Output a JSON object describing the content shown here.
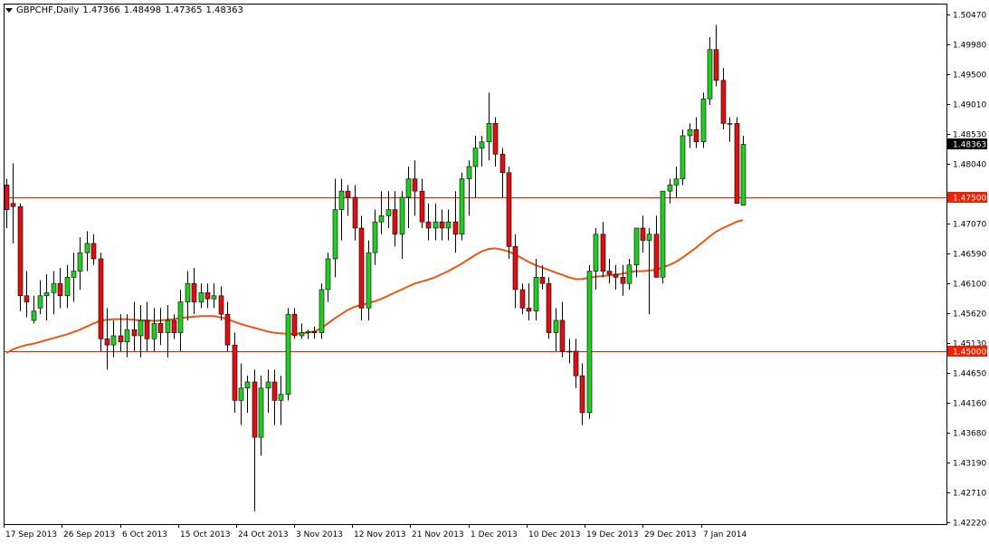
{
  "header": {
    "symbol": "GBPCHF,Daily",
    "open": "1.47366",
    "high": "1.48498",
    "low": "1.47365",
    "close": "1.48363"
  },
  "colors": {
    "bull": "#22cc22",
    "bear": "#dd1111",
    "wick": "#000000",
    "ma": "#ee5511",
    "hline": "#ee2200",
    "label_bg": "#ee2200",
    "current_bg": "#000000",
    "grid_frame": "#000000"
  },
  "chart_data": {
    "type": "candlestick",
    "symbol": "GBPCHF",
    "timeframe": "Daily",
    "ylim": [
      1.4222,
      1.5047
    ],
    "y_ticks": [
      "1.50470",
      "1.49980",
      "1.49500",
      "1.49010",
      "1.48530",
      "1.48040",
      "1.47070",
      "1.46590",
      "1.46100",
      "1.45620",
      "1.45130",
      "1.44650",
      "1.44160",
      "1.43680",
      "1.43190",
      "1.42710",
      "1.42220"
    ],
    "x_labels": [
      "17 Sep 2013",
      "26 Sep 2013",
      "6 Oct 2013",
      "15 Oct 2013",
      "24 Oct 2013",
      "3 Nov 2013",
      "12 Nov 2013",
      "21 Nov 2013",
      "1 Dec 2013",
      "10 Dec 2013",
      "19 Dec 2013",
      "29 Dec 2013",
      "7 Jan 2014"
    ],
    "horizontal_lines": [
      {
        "label": "1.47500",
        "value": 1.475
      },
      {
        "label": "1.45000",
        "value": 1.45
      }
    ],
    "current_price_label": "1.48363",
    "candles": [
      [
        1.477,
        1.478,
        1.47,
        1.473
      ],
      [
        1.474,
        1.4805,
        1.4675,
        1.4735
      ],
      [
        1.4735,
        1.474,
        1.4565,
        1.459
      ],
      [
        1.459,
        1.463,
        1.4555,
        1.458
      ],
      [
        1.455,
        1.459,
        1.4545,
        1.4565
      ],
      [
        1.457,
        1.4615,
        1.456,
        1.459
      ],
      [
        1.459,
        1.4625,
        1.455,
        1.4595
      ],
      [
        1.4595,
        1.463,
        1.456,
        1.461
      ],
      [
        1.461,
        1.4635,
        1.457,
        1.459
      ],
      [
        1.459,
        1.464,
        1.457,
        1.462
      ],
      [
        1.462,
        1.466,
        1.458,
        1.463
      ],
      [
        1.463,
        1.4685,
        1.46,
        1.466
      ],
      [
        1.466,
        1.4695,
        1.463,
        1.4675
      ],
      [
        1.4675,
        1.469,
        1.464,
        1.465
      ],
      [
        1.465,
        1.466,
        1.45,
        1.452
      ],
      [
        1.452,
        1.457,
        1.447,
        1.451
      ],
      [
        1.451,
        1.455,
        1.449,
        1.4525
      ],
      [
        1.4525,
        1.456,
        1.45,
        1.4515
      ],
      [
        1.4515,
        1.456,
        1.449,
        1.4535
      ],
      [
        1.4535,
        1.458,
        1.45,
        1.4525
      ],
      [
        1.4525,
        1.4575,
        1.449,
        1.455
      ],
      [
        1.455,
        1.458,
        1.45,
        1.452
      ],
      [
        1.452,
        1.457,
        1.45,
        1.4545
      ],
      [
        1.4545,
        1.457,
        1.451,
        1.453
      ],
      [
        1.453,
        1.4575,
        1.449,
        1.455
      ],
      [
        1.455,
        1.456,
        1.452,
        1.453
      ],
      [
        1.453,
        1.46,
        1.45,
        1.458
      ],
      [
        1.458,
        1.463,
        1.455,
        1.461
      ],
      [
        1.461,
        1.4635,
        1.456,
        1.458
      ],
      [
        1.458,
        1.461,
        1.457,
        1.4595
      ],
      [
        1.4595,
        1.461,
        1.457,
        1.4585
      ],
      [
        1.4585,
        1.461,
        1.457,
        1.459
      ],
      [
        1.459,
        1.4605,
        1.455,
        1.456
      ],
      [
        1.456,
        1.458,
        1.45,
        1.451
      ],
      [
        1.451,
        1.453,
        1.44,
        1.442
      ],
      [
        1.442,
        1.448,
        1.438,
        1.444
      ],
      [
        1.444,
        1.446,
        1.44,
        1.445
      ],
      [
        1.445,
        1.447,
        1.424,
        1.436
      ],
      [
        1.436,
        1.446,
        1.433,
        1.444
      ],
      [
        1.444,
        1.447,
        1.44,
        1.445
      ],
      [
        1.445,
        1.447,
        1.438,
        1.442
      ],
      [
        1.442,
        1.446,
        1.438,
        1.443
      ],
      [
        1.443,
        1.457,
        1.442,
        1.456
      ],
      [
        1.456,
        1.457,
        1.452,
        1.4525
      ],
      [
        1.4525,
        1.4545,
        1.452,
        1.453
      ],
      [
        1.453,
        1.4535,
        1.452,
        1.4532
      ],
      [
        1.4532,
        1.454,
        1.452,
        1.453
      ],
      [
        1.453,
        1.461,
        1.452,
        1.46
      ],
      [
        1.46,
        1.466,
        1.458,
        1.465
      ],
      [
        1.465,
        1.478,
        1.462,
        1.473
      ],
      [
        1.473,
        1.478,
        1.468,
        1.476
      ],
      [
        1.476,
        1.477,
        1.472,
        1.475
      ],
      [
        1.475,
        1.477,
        1.468,
        1.47
      ],
      [
        1.47,
        1.472,
        1.455,
        1.457
      ],
      [
        1.457,
        1.468,
        1.455,
        1.466
      ],
      [
        1.466,
        1.473,
        1.464,
        1.471
      ],
      [
        1.471,
        1.476,
        1.469,
        1.472
      ],
      [
        1.472,
        1.476,
        1.47,
        1.473
      ],
      [
        1.473,
        1.476,
        1.467,
        1.469
      ],
      [
        1.469,
        1.476,
        1.465,
        1.475
      ],
      [
        1.475,
        1.48,
        1.47,
        1.478
      ],
      [
        1.478,
        1.481,
        1.472,
        1.476
      ],
      [
        1.476,
        1.478,
        1.47,
        1.471
      ],
      [
        1.471,
        1.474,
        1.468,
        1.47
      ],
      [
        1.47,
        1.474,
        1.468,
        1.471
      ],
      [
        1.471,
        1.473,
        1.468,
        1.47
      ],
      [
        1.47,
        1.473,
        1.468,
        1.471
      ],
      [
        1.471,
        1.476,
        1.466,
        1.469
      ],
      [
        1.469,
        1.479,
        1.468,
        1.478
      ],
      [
        1.478,
        1.481,
        1.472,
        1.48
      ],
      [
        1.48,
        1.485,
        1.475,
        1.483
      ],
      [
        1.483,
        1.485,
        1.48,
        1.484
      ],
      [
        1.484,
        1.492,
        1.481,
        1.487
      ],
      [
        1.487,
        1.488,
        1.48,
        1.482
      ],
      [
        1.482,
        1.483,
        1.475,
        1.479
      ],
      [
        1.479,
        1.48,
        1.465,
        1.467
      ],
      [
        1.467,
        1.469,
        1.457,
        1.46
      ],
      [
        1.46,
        1.461,
        1.456,
        1.457
      ],
      [
        1.457,
        1.461,
        1.455,
        1.4565
      ],
      [
        1.4565,
        1.465,
        1.455,
        1.462
      ],
      [
        1.462,
        1.464,
        1.46,
        1.461
      ],
      [
        1.461,
        1.462,
        1.452,
        1.453
      ],
      [
        1.453,
        1.457,
        1.45,
        1.455
      ],
      [
        1.455,
        1.458,
        1.449,
        1.45
      ],
      [
        1.45,
        1.452,
        1.448,
        1.45
      ],
      [
        1.45,
        1.452,
        1.444,
        1.446
      ],
      [
        1.446,
        1.448,
        1.438,
        1.44
      ],
      [
        1.44,
        1.464,
        1.439,
        1.463
      ],
      [
        1.463,
        1.47,
        1.46,
        1.469
      ],
      [
        1.469,
        1.471,
        1.462,
        1.463
      ],
      [
        1.463,
        1.465,
        1.461,
        1.4625
      ],
      [
        1.4625,
        1.464,
        1.46,
        1.462
      ],
      [
        1.462,
        1.464,
        1.459,
        1.461
      ],
      [
        1.461,
        1.465,
        1.46,
        1.464
      ],
      [
        1.464,
        1.47,
        1.462,
        1.47
      ],
      [
        1.47,
        1.472,
        1.466,
        1.468
      ],
      [
        1.468,
        1.47,
        1.456,
        1.469
      ],
      [
        1.469,
        1.472,
        1.462,
        1.462
      ],
      [
        1.462,
        1.476,
        1.461,
        1.476
      ],
      [
        1.476,
        1.478,
        1.474,
        1.477
      ],
      [
        1.477,
        1.48,
        1.475,
        1.478
      ],
      [
        1.478,
        1.486,
        1.477,
        1.485
      ],
      [
        1.485,
        1.487,
        1.483,
        1.486
      ],
      [
        1.486,
        1.488,
        1.483,
        1.484
      ],
      [
        1.484,
        1.492,
        1.483,
        1.491
      ],
      [
        1.491,
        1.501,
        1.49,
        1.499
      ],
      [
        1.499,
        1.503,
        1.493,
        1.494
      ],
      [
        1.494,
        1.496,
        1.486,
        1.487
      ],
      [
        1.487,
        1.488,
        1.484,
        1.487
      ],
      [
        1.487,
        1.488,
        1.474,
        1.474
      ],
      [
        1.4737,
        1.485,
        1.4737,
        1.4836
      ]
    ],
    "moving_average": [
      1.4497,
      1.4503,
      1.4507,
      1.451,
      1.4512,
      1.4515,
      1.4518,
      1.4521,
      1.4524,
      1.4527,
      1.4531,
      1.4535,
      1.454,
      1.4545,
      1.4549,
      1.4551,
      1.4552,
      1.4552,
      1.4552,
      1.4551,
      1.455,
      1.455,
      1.4549,
      1.455,
      1.4551,
      1.4552,
      1.4554,
      1.4555,
      1.4556,
      1.4557,
      1.4557,
      1.4557,
      1.4555,
      1.4552,
      1.4548,
      1.4544,
      1.4541,
      1.4538,
      1.4535,
      1.4532,
      1.453,
      1.4529,
      1.4528,
      1.4528,
      1.4529,
      1.453,
      1.4532,
      1.4537,
      1.4545,
      1.4553,
      1.456,
      1.4567,
      1.4572,
      1.4575,
      1.4578,
      1.4581,
      1.4585,
      1.459,
      1.4595,
      1.46,
      1.4605,
      1.461,
      1.4613,
      1.4616,
      1.462,
      1.4625,
      1.463,
      1.4636,
      1.4642,
      1.4649,
      1.4656,
      1.4662,
      1.4666,
      1.4667,
      1.4665,
      1.4662,
      1.4657,
      1.4651,
      1.4645,
      1.464,
      1.4636,
      1.4632,
      1.4628,
      1.4624,
      1.462,
      1.4617,
      1.4617,
      1.4619,
      1.4621,
      1.4622,
      1.4623,
      1.4624,
      1.4626,
      1.4628,
      1.463,
      1.463,
      1.4631,
      1.4632,
      1.4636,
      1.464,
      1.4645,
      1.4652,
      1.466,
      1.4668,
      1.4677,
      1.4686,
      1.4694,
      1.47,
      1.4705,
      1.471,
      1.4713
    ]
  }
}
